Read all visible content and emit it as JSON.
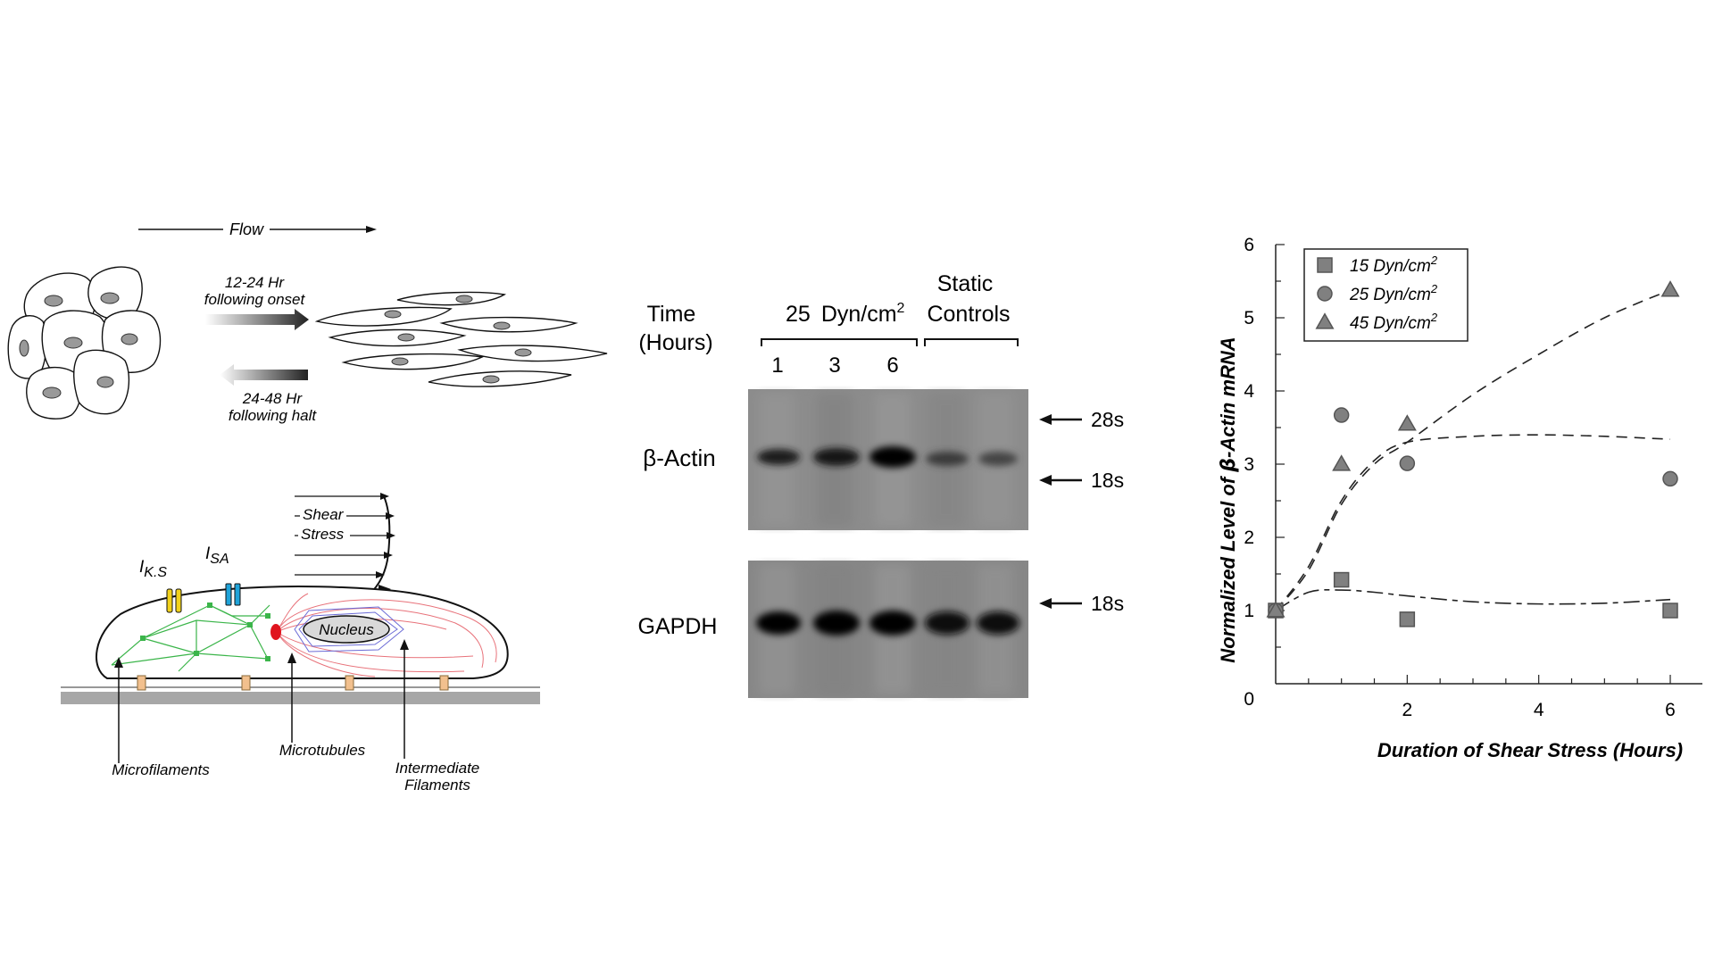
{
  "cell_diagram": {
    "flow_label": "Flow",
    "onset_label_line1": "12-24 Hr",
    "onset_label_line2": "following onset",
    "halt_label_line1": "24-48 Hr",
    "halt_label_line2": "following halt",
    "shear_label": "Shear",
    "stress_label": "Stress",
    "channel_ks_main": "I",
    "channel_ks_sub": "K.S",
    "channel_sa_main": "I",
    "channel_sa_sub": "SA",
    "nucleus_label": "Nucleus",
    "microfilaments_label": "Microfilaments",
    "microtubules_label": "Microtubules",
    "intermediate_label_line1": "Intermediate",
    "intermediate_label_line2": "Filaments",
    "colors": {
      "ks_channel": "#f2d21b",
      "sa_channel": "#1fa3d9",
      "microfilament": "#3bb54a",
      "microtubule_center": "#e0141e",
      "intermediate": "#e8727a",
      "focal_adhesion": "#f2c08e",
      "substrate": "#a7a7a7"
    }
  },
  "blot": {
    "time_label_line1": "Time",
    "time_label_line2": "(Hours)",
    "condition_number": "25",
    "condition_unit": "Dyn/cm",
    "condition_exp": "2",
    "static_label_line1": "Static",
    "static_label_line2": "Controls",
    "lanes": [
      "1",
      "3",
      "6"
    ],
    "row1_label": "β-Actin",
    "row2_label": "GAPDH",
    "marker_28s": "28s",
    "marker_18s_top": "18s",
    "marker_18s_bottom": "18s"
  },
  "chart_data": {
    "type": "scatter",
    "xlabel": "Duration of Shear Stress (Hours)",
    "ylabel_pre": "Normalized Level of ",
    "ylabel_beta": "β",
    "ylabel_post": "-Actin mRNA",
    "xlim": [
      0,
      6.3
    ],
    "ylim": [
      0,
      6
    ],
    "x_ticks": [
      0,
      2,
      4,
      6
    ],
    "y_ticks": [
      1,
      2,
      3,
      4,
      5,
      6
    ],
    "x_tick_labels": [
      "0",
      "2",
      "4",
      "6"
    ],
    "y_tick_labels": [
      "1",
      "2",
      "3",
      "4",
      "5",
      "6"
    ],
    "legend_position": "top-left",
    "series": [
      {
        "name": "15 Dyn/cm",
        "name_exp": "2",
        "marker": "square",
        "x": [
          0,
          1,
          2,
          6
        ],
        "y": [
          1.0,
          1.42,
          0.88,
          1.0
        ]
      },
      {
        "name": "25 Dyn/cm",
        "name_exp": "2",
        "marker": "circle",
        "x": [
          0,
          1,
          2,
          6
        ],
        "y": [
          1.0,
          3.67,
          3.01,
          2.8
        ]
      },
      {
        "name": "45 Dyn/cm",
        "name_exp": "2",
        "marker": "triangle",
        "x": [
          0,
          1,
          2,
          6
        ],
        "y": [
          1.0,
          3.0,
          3.55,
          5.38
        ]
      }
    ],
    "fit_curves": [
      {
        "series": "15 Dyn/cm",
        "x": [
          0,
          0.5,
          1,
          1.5,
          2,
          3,
          4,
          5,
          6
        ],
        "y": [
          1.0,
          1.25,
          1.28,
          1.25,
          1.2,
          1.12,
          1.09,
          1.1,
          1.15
        ]
      },
      {
        "series": "25 Dyn/cm",
        "x": [
          0,
          0.5,
          1,
          1.5,
          2,
          3,
          4,
          5,
          6
        ],
        "y": [
          1.0,
          1.6,
          2.5,
          3.05,
          3.3,
          3.38,
          3.4,
          3.38,
          3.34
        ]
      },
      {
        "series": "45 Dyn/cm",
        "x": [
          0,
          0.5,
          1,
          1.5,
          2,
          3,
          4,
          5,
          6
        ],
        "y": [
          1.0,
          1.55,
          2.45,
          3.0,
          3.3,
          3.95,
          4.5,
          5.0,
          5.38
        ]
      }
    ],
    "colors": {
      "marker_fill": "#808080",
      "marker_stroke": "#555555",
      "line": "#222222"
    }
  }
}
